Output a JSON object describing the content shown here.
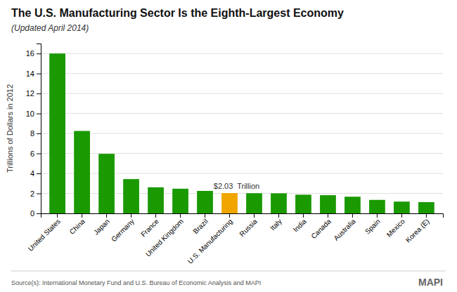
{
  "chart_data": {
    "type": "bar",
    "title": "The U.S. Manufacturing Sector Is the Eighth-Largest Economy",
    "subtitle": "(Updated April 2014)",
    "categories": [
      "United States",
      "China",
      "Japan",
      "Germany",
      "France",
      "United Kingdom",
      "Brazil",
      "U.S. Manufacturing",
      "Russia",
      "Italy",
      "India",
      "Canada",
      "Australia",
      "Spain",
      "Mexico",
      "Korea (E)"
    ],
    "values": [
      16.0,
      8.25,
      5.96,
      3.43,
      2.61,
      2.47,
      2.25,
      2.03,
      2.02,
      2.01,
      1.87,
      1.82,
      1.67,
      1.35,
      1.18,
      1.13
    ],
    "colors": [
      "#1a9900",
      "#1a9900",
      "#1a9900",
      "#1a9900",
      "#1a9900",
      "#1a9900",
      "#1a9900",
      "#f0a500",
      "#1a9900",
      "#1a9900",
      "#1a9900",
      "#1a9900",
      "#1a9900",
      "#1a9900",
      "#1a9900",
      "#1a9900"
    ],
    "ylabel": "Trillions of Dollars in 2012",
    "ylim": [
      0,
      17
    ],
    "yticks": [
      0,
      2,
      4,
      6,
      8,
      10,
      12,
      14,
      16
    ],
    "grid": true,
    "annotations": [
      {
        "text": "$2.03  Trillion",
        "x": "U.S. Manufacturing",
        "y": 2.03
      },
      {
        "text": "MAPI"
      }
    ],
    "source": "Source(s): International Monetary Fund and U.S. Bureau of Economic Analysis and MAPI"
  }
}
